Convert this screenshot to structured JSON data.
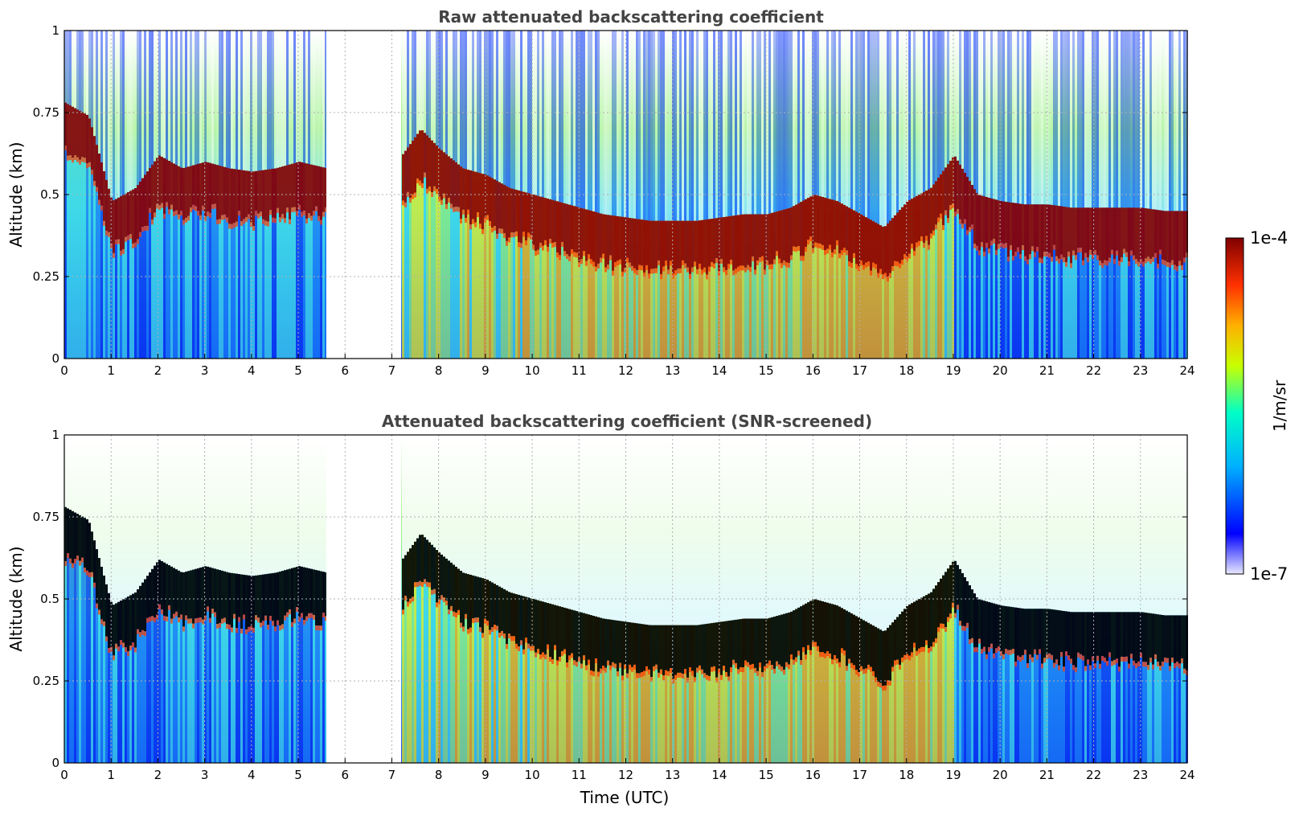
{
  "chart_data": [
    {
      "type": "heatmap",
      "title": "Raw attenuated backscattering coefficient",
      "xlabel": "",
      "ylabel": "Altitude (km)",
      "xlim": [
        0,
        24
      ],
      "ylim": [
        0,
        1
      ],
      "x_ticks": [
        "0",
        "1",
        "2",
        "3",
        "4",
        "5",
        "6",
        "7",
        "8",
        "9",
        "10",
        "11",
        "12",
        "13",
        "14",
        "15",
        "16",
        "17",
        "18",
        "19",
        "20",
        "21",
        "22",
        "23",
        "24"
      ],
      "y_ticks": [
        "0",
        "0.25",
        "0.5",
        "0.75",
        "1"
      ],
      "grid": true,
      "data_gap_utc": [
        5.6,
        7.2
      ],
      "layer_top_km": [
        [
          0,
          0.78
        ],
        [
          0.5,
          0.74
        ],
        [
          1.0,
          0.48
        ],
        [
          1.5,
          0.52
        ],
        [
          2.0,
          0.62
        ],
        [
          2.5,
          0.58
        ],
        [
          3.0,
          0.6
        ],
        [
          3.5,
          0.58
        ],
        [
          4.0,
          0.57
        ],
        [
          4.5,
          0.58
        ],
        [
          5.0,
          0.6
        ],
        [
          5.6,
          0.58
        ],
        [
          7.2,
          0.62
        ],
        [
          7.6,
          0.7
        ],
        [
          8.0,
          0.64
        ],
        [
          8.5,
          0.58
        ],
        [
          9.0,
          0.56
        ],
        [
          9.5,
          0.52
        ],
        [
          10.0,
          0.5
        ],
        [
          10.5,
          0.48
        ],
        [
          11.0,
          0.46
        ],
        [
          11.5,
          0.44
        ],
        [
          12.0,
          0.43
        ],
        [
          12.5,
          0.42
        ],
        [
          13.0,
          0.42
        ],
        [
          13.5,
          0.42
        ],
        [
          14.0,
          0.43
        ],
        [
          14.5,
          0.44
        ],
        [
          15.0,
          0.44
        ],
        [
          15.5,
          0.46
        ],
        [
          16.0,
          0.5
        ],
        [
          16.5,
          0.48
        ],
        [
          17.0,
          0.44
        ],
        [
          17.5,
          0.4
        ],
        [
          18.0,
          0.48
        ],
        [
          18.5,
          0.52
        ],
        [
          19.0,
          0.62
        ],
        [
          19.5,
          0.5
        ],
        [
          20.0,
          0.48
        ],
        [
          20.5,
          0.47
        ],
        [
          21.0,
          0.47
        ],
        [
          21.5,
          0.46
        ],
        [
          22.0,
          0.46
        ],
        [
          22.5,
          0.46
        ],
        [
          23.0,
          0.46
        ],
        [
          23.5,
          0.45
        ],
        [
          24.0,
          0.45
        ]
      ]
    },
    {
      "type": "heatmap",
      "title": "Attenuated backscattering coefficient (SNR-screened)",
      "xlabel": "Time (UTC)",
      "ylabel": "Altitude (km)",
      "xlim": [
        0,
        24
      ],
      "ylim": [
        0,
        1
      ],
      "x_ticks": [
        "0",
        "1",
        "2",
        "3",
        "4",
        "5",
        "6",
        "7",
        "8",
        "9",
        "10",
        "11",
        "12",
        "13",
        "14",
        "15",
        "16",
        "17",
        "18",
        "19",
        "20",
        "21",
        "22",
        "23",
        "24"
      ],
      "y_ticks": [
        "0",
        "0.25",
        "0.5",
        "0.75",
        "1"
      ],
      "grid": true,
      "data_gap_utc": [
        5.6,
        7.2
      ]
    }
  ],
  "colorbar": {
    "label": "1/m/sr",
    "min_label": "1e-7",
    "max_label": "1e-4",
    "scale": "log",
    "colormap": [
      "#e8e8ff",
      "#0000ff",
      "#00c0ff",
      "#00ffc0",
      "#c0ff00",
      "#ffc000",
      "#ff4000",
      "#800000"
    ]
  }
}
